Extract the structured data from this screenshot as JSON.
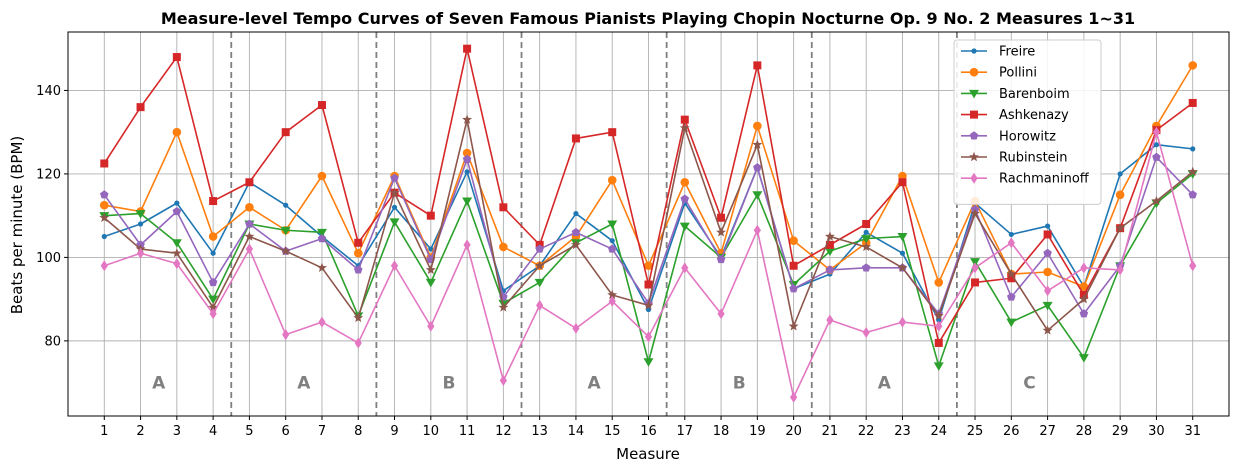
{
  "chart_data": {
    "type": "line",
    "title": "Measure-level Tempo Curves of Seven Famous Pianists Playing Chopin Nocturne Op. 9 No. 2 Measures 1~31",
    "xlabel": "Measure",
    "ylabel": "Beats per minute (BPM)",
    "x": [
      1,
      2,
      3,
      4,
      5,
      6,
      7,
      8,
      9,
      10,
      11,
      12,
      13,
      14,
      15,
      16,
      17,
      18,
      19,
      20,
      21,
      22,
      23,
      24,
      25,
      26,
      27,
      28,
      29,
      30,
      31
    ],
    "xlim": [
      0,
      32
    ],
    "ylim": [
      62,
      154
    ],
    "yticks": [
      80,
      100,
      120,
      140
    ],
    "grid": true,
    "legend_position": "top-right",
    "section_dividers": [
      4.5,
      8.5,
      12.5,
      16.5,
      20.5,
      24.5
    ],
    "sections": [
      {
        "label": "A",
        "x": 2.5,
        "y": 70
      },
      {
        "label": "A",
        "x": 6.5,
        "y": 70
      },
      {
        "label": "B",
        "x": 10.5,
        "y": 70
      },
      {
        "label": "A",
        "x": 14.5,
        "y": 70
      },
      {
        "label": "B",
        "x": 18.5,
        "y": 70
      },
      {
        "label": "A",
        "x": 22.5,
        "y": 70
      },
      {
        "label": "C",
        "x": 26.5,
        "y": 70
      }
    ],
    "series": [
      {
        "name": "Freire",
        "color": "#1f77b4",
        "marker": "dot",
        "values": [
          105,
          108,
          113,
          101,
          118,
          112.5,
          105,
          98,
          112,
          102,
          120.5,
          92,
          98,
          110.5,
          104,
          87.5,
          113,
          100,
          121.5,
          92.5,
          96,
          106,
          101,
          85,
          113,
          105.5,
          107.5,
          93,
          120,
          127,
          126
        ]
      },
      {
        "name": "Pollini",
        "color": "#ff7f0e",
        "marker": "circle",
        "values": [
          112.5,
          111,
          130,
          105,
          112,
          106.5,
          119.5,
          101,
          119.5,
          100,
          125,
          102.5,
          98,
          105,
          118.5,
          98,
          118,
          101,
          131.5,
          104,
          97,
          103.5,
          119.5,
          94,
          113.5,
          96,
          96.5,
          93,
          115,
          131.5,
          146
        ]
      },
      {
        "name": "Barenboim",
        "color": "#2ca02c",
        "marker": "triangle-down",
        "values": [
          110,
          110.5,
          103.5,
          90,
          108,
          106.5,
          106,
          86,
          108.5,
          94,
          113.5,
          89,
          94,
          103.5,
          108,
          75,
          107.5,
          100,
          115,
          93.5,
          101.5,
          104.5,
          105,
          74,
          99,
          84.5,
          88.5,
          76,
          98,
          113,
          120
        ]
      },
      {
        "name": "Ashkenazy",
        "color": "#d62728",
        "marker": "square",
        "values": [
          122.5,
          136,
          148,
          113.5,
          118,
          130,
          136.5,
          103.5,
          115.5,
          110,
          150,
          112,
          103,
          128.5,
          130,
          93.5,
          133,
          109.5,
          146,
          98,
          103,
          108,
          118,
          79.5,
          94,
          95,
          105.5,
          91,
          107,
          130.5,
          137
        ]
      },
      {
        "name": "Horowitz",
        "color": "#9467bd",
        "marker": "pentagon",
        "values": [
          115,
          103,
          111,
          94,
          108,
          101.5,
          104.5,
          97,
          119,
          99.5,
          123.5,
          90.5,
          102,
          106,
          102,
          89,
          114,
          99.5,
          121.5,
          92.5,
          97,
          97.5,
          97.5,
          86.5,
          111.5,
          90.5,
          101,
          86.5,
          98,
          124,
          115
        ]
      },
      {
        "name": "Rubinstein",
        "color": "#8c564b",
        "marker": "star",
        "values": [
          109.5,
          102,
          101,
          88,
          105,
          101.5,
          97.5,
          85.5,
          115.5,
          97,
          133,
          88,
          98,
          103,
          91,
          88.5,
          131,
          106,
          127,
          83.5,
          105,
          102.5,
          97.5,
          86,
          110.5,
          96,
          82.5,
          90,
          107,
          113.5,
          120.5
        ]
      },
      {
        "name": "Rachmaninoff",
        "color": "#e377c2",
        "marker": "diamond",
        "values": [
          98,
          101,
          98.5,
          86.5,
          102,
          81.5,
          84.5,
          79.5,
          98,
          83.5,
          103,
          70.5,
          88.5,
          83,
          89.5,
          81,
          97.5,
          86.5,
          106.5,
          66.5,
          85,
          82,
          84.5,
          83.5,
          97.5,
          103.5,
          92,
          97.5,
          97,
          130,
          98
        ]
      }
    ]
  }
}
